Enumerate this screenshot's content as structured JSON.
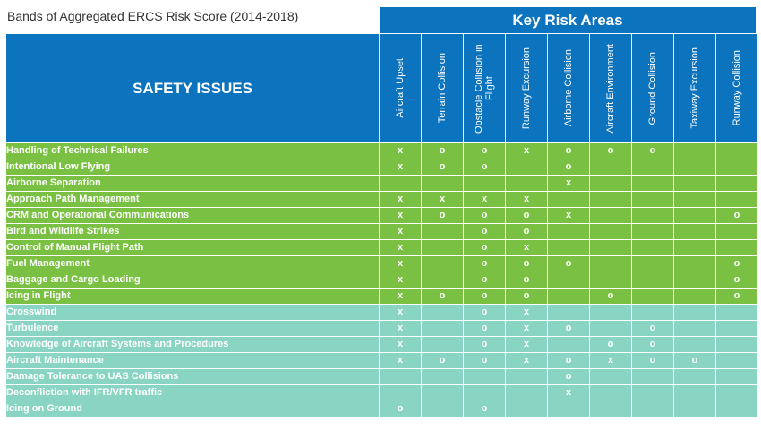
{
  "title": "Bands of Aggregated ERCS Risk Score (2014-2018)",
  "banner": "Key Risk Areas",
  "issues_header": "SAFETY ISSUES",
  "colors": {
    "header_blue": "#0c73be",
    "green_band": "#7ac143",
    "teal_band": "#89d4c3"
  },
  "risk_areas": [
    "Aircraft Upset",
    "Terrain Collision",
    "Obstacle Collision in Flight",
    "Runway Excursion",
    "Airborne Collision",
    "Aircraft Environment",
    "Ground Collision",
    "Taxiway Excursion",
    "Runway Collision"
  ],
  "rows": [
    {
      "issue": "Handling of Technical Failures",
      "band": "green",
      "marks": [
        "x",
        "o",
        "o",
        "x",
        "o",
        "o",
        "o",
        "",
        ""
      ]
    },
    {
      "issue": "Intentional Low Flying",
      "band": "green",
      "marks": [
        "x",
        "o",
        "o",
        "",
        "o",
        "",
        "",
        "",
        ""
      ]
    },
    {
      "issue": "Airborne Separation",
      "band": "green",
      "marks": [
        "",
        "",
        "",
        "",
        "x",
        "",
        "",
        "",
        ""
      ]
    },
    {
      "issue": "Approach Path Management",
      "band": "green",
      "marks": [
        "x",
        "x",
        "x",
        "x",
        "",
        "",
        "",
        "",
        ""
      ]
    },
    {
      "issue": "CRM and Operational Communications",
      "band": "green",
      "marks": [
        "x",
        "o",
        "o",
        "o",
        "x",
        "",
        "",
        "",
        "o"
      ]
    },
    {
      "issue": "Bird and Wildlife Strikes",
      "band": "green",
      "marks": [
        "x",
        "",
        "o",
        "o",
        "",
        "",
        "",
        "",
        ""
      ]
    },
    {
      "issue": "Control of Manual Flight Path",
      "band": "green",
      "marks": [
        "x",
        "",
        "o",
        "x",
        "",
        "",
        "",
        "",
        ""
      ]
    },
    {
      "issue": "Fuel Management",
      "band": "green",
      "marks": [
        "x",
        "",
        "o",
        "o",
        "o",
        "",
        "",
        "",
        "o"
      ]
    },
    {
      "issue": "Baggage and Cargo Loading",
      "band": "green",
      "marks": [
        "x",
        "",
        "o",
        "o",
        "",
        "",
        "",
        "",
        "o"
      ]
    },
    {
      "issue": "Icing in Flight",
      "band": "green",
      "marks": [
        "x",
        "o",
        "o",
        "o",
        "",
        "o",
        "",
        "",
        "o"
      ]
    },
    {
      "issue": "Crosswind",
      "band": "teal",
      "marks": [
        "x",
        "",
        "o",
        "x",
        "",
        "",
        "",
        "",
        ""
      ]
    },
    {
      "issue": "Turbulence",
      "band": "teal",
      "marks": [
        "x",
        "",
        "o",
        "x",
        "o",
        "",
        "o",
        "",
        ""
      ]
    },
    {
      "issue": "Knowledge of Aircraft Systems and Procedures",
      "band": "teal",
      "marks": [
        "x",
        "",
        "o",
        "x",
        "",
        "o",
        "o",
        "",
        ""
      ]
    },
    {
      "issue": "Aircraft Maintenance",
      "band": "teal",
      "marks": [
        "x",
        "o",
        "o",
        "x",
        "o",
        "x",
        "o",
        "o",
        ""
      ]
    },
    {
      "issue": "Damage Tolerance to UAS Collisions",
      "band": "teal",
      "marks": [
        "",
        "",
        "",
        "",
        "o",
        "",
        "",
        "",
        ""
      ]
    },
    {
      "issue": "Deconfliction with IFR/VFR traffic",
      "band": "teal",
      "marks": [
        "",
        "",
        "",
        "",
        "x",
        "",
        "",
        "",
        ""
      ]
    },
    {
      "issue": "Icing on Ground",
      "band": "teal",
      "marks": [
        "o",
        "",
        "o",
        "",
        "",
        "",
        "",
        "",
        ""
      ]
    }
  ]
}
